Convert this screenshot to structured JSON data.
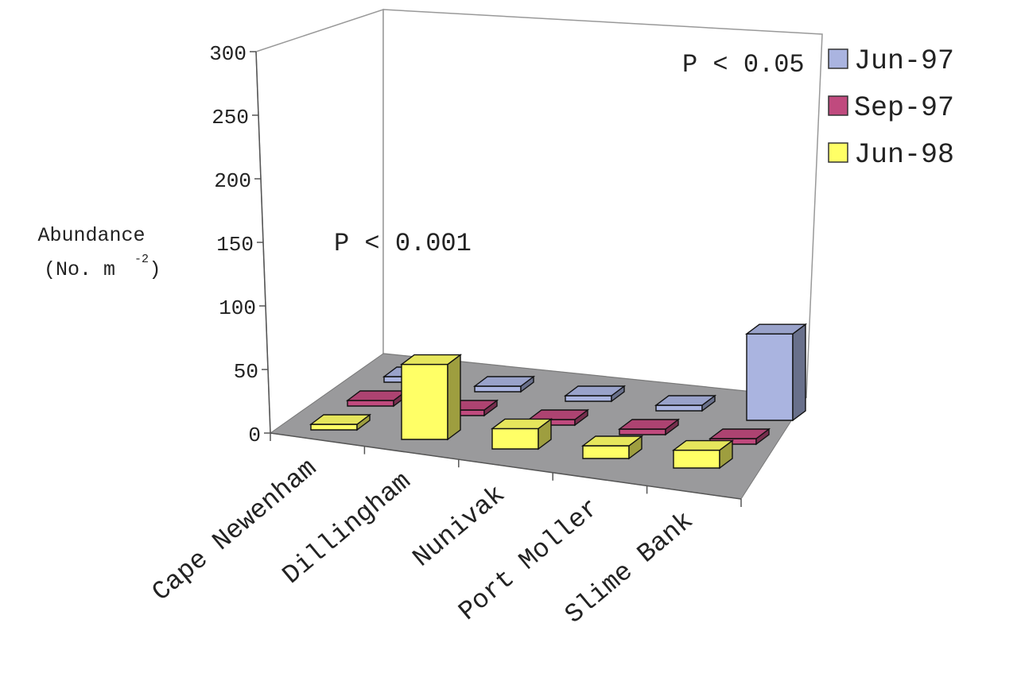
{
  "chart_data": {
    "type": "bar",
    "title": "",
    "xlabel": "",
    "ylabel": "Abundance",
    "ylabel_unit": "(No. m",
    "ylabel_exp": "-2",
    "ylabel_close": ")",
    "ylim": [
      0,
      300
    ],
    "yticks": [
      "0",
      "50",
      "100",
      "150",
      "200",
      "250",
      "300"
    ],
    "categories": [
      "Cape Newenham",
      "Dillingham",
      "Nunivak",
      "Port Moller",
      "Slime Bank"
    ],
    "series": [
      {
        "name": "Jun-97",
        "color": "#aab4e0",
        "values": [
          1,
          0,
          2,
          1,
          68
        ]
      },
      {
        "name": "Sep-97",
        "color": "#c04a7e",
        "values": [
          0,
          0,
          3,
          0,
          4
        ]
      },
      {
        "name": "Jun-98",
        "color": "#ffff66",
        "values": [
          0,
          59,
          16,
          10,
          14
        ]
      }
    ],
    "annotations": [
      "P < 0.001",
      "P < 0.05"
    ],
    "legend": "top-right",
    "grid": false
  }
}
